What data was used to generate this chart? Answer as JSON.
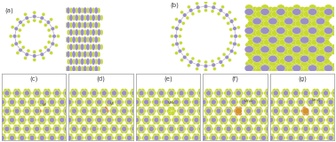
{
  "background_color": "#ffffff",
  "panels": {
    "top_left_label": "(a)",
    "top_right_label": "(b)",
    "bottom_labels": [
      "(c)",
      "(d)",
      "(e)",
      "(f)",
      "(g)"
    ]
  },
  "mo_color": "#9b8fc8",
  "s_color": "#c8d930",
  "defect_color": "#d4922a",
  "mo_color_dark": "#7b6fb0",
  "label_fontsize": 5.0,
  "label_color": "#444444",
  "fig_width": 3.78,
  "fig_height": 1.6
}
